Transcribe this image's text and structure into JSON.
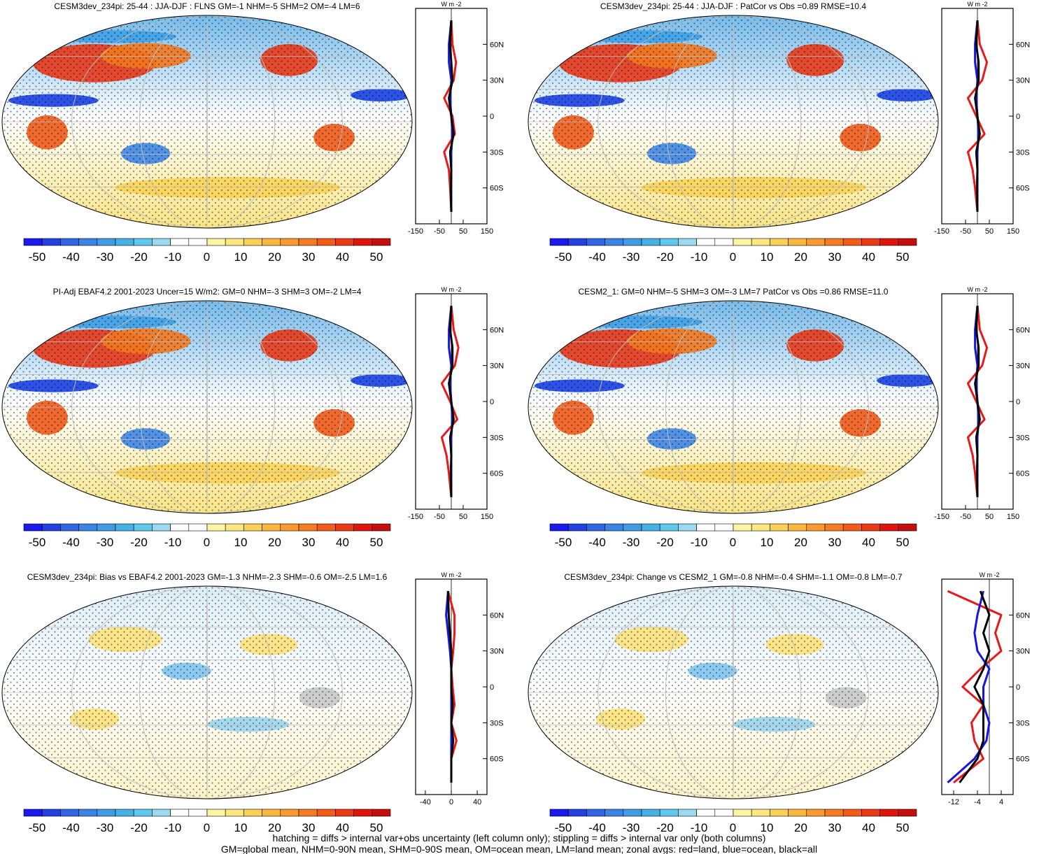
{
  "colors": {
    "land": "#e8191a",
    "ocean": "#1515e6",
    "all": "#000000",
    "grid": "#bdbdbd",
    "missing": "#c9c9c9",
    "colorbar": [
      "#1a1aef",
      "#2340e0",
      "#2e66e3",
      "#3a84e6",
      "#3e9be4",
      "#42b2e3",
      "#5fc8ec",
      "#9ad9f0",
      "#ffffff",
      "#ffffff",
      "#fff3a6",
      "#fee77e",
      "#fdd053",
      "#fdb73d",
      "#fd9a2d",
      "#f97b21",
      "#f45a18",
      "#ec3a13",
      "#e2140e",
      "#c70d0d"
    ]
  },
  "colorbar_ticks": [
    "-50",
    "-40",
    "-30",
    "-20",
    "-10",
    "0",
    "10",
    "20",
    "30",
    "40",
    "50"
  ],
  "lat_ticks": [
    "60N",
    "30N",
    "0",
    "30S",
    "60S"
  ],
  "unit_label": "W m",
  "unit_sup": "-2",
  "panels": [
    {
      "title": "CESM3dev_234pi: 25-44 : JJA-DJF : FLNS GM=-1 NHM=-5 SHM=2 OM=-4 LM=6",
      "xticks": [
        "-150",
        "-50",
        "50",
        "150"
      ],
      "kind": "mean"
    },
    {
      "title": "CESM3dev_234pi: 25-44 : JJA-DJF : PatCor vs Obs =0.89 RMSE=10.4",
      "xticks": [
        "-150",
        "-50",
        "50",
        "150"
      ],
      "kind": "mean"
    },
    {
      "title": "PI-Adj EBAF4.2 2001-2023 Uncer=15 W/m2: GM=0 NHM=-3 SHM=3 OM=-2 LM=4",
      "xticks": [
        "-150",
        "-50",
        "50",
        "150"
      ],
      "kind": "mean"
    },
    {
      "title": "CESM2_1: GM=0 NHM=-5 SHM=3 OM=-3 LM=7 PatCor vs Obs =0.86 RMSE=11.0",
      "xticks": [
        "-150",
        "-50",
        "50",
        "150"
      ],
      "kind": "mean"
    },
    {
      "title": "CESM3dev_234pi: Bias vs EBAF4.2 2001-2023 GM=-1.3 NHM=-2.3 SHM=-0.6 OM=-2.5 LM=1.6",
      "xticks": [
        "-40",
        "0",
        "40"
      ],
      "kind": "diff"
    },
    {
      "title": "CESM3dev_234pi: Change vs CESM2_1 GM=-0.8 NHM=-0.4 SHM=-1.1 OM=-0.8 LM=-0.7",
      "xticks": [
        "-12",
        "-4",
        "4"
      ],
      "kind": "change"
    }
  ],
  "footer": [
    "hatching = diffs > internal var+obs uncertainty (left column only); stippling = diffs > internal var only (both columns)",
    "GM=global mean, NHM=0-90N mean, SHM=0-90S mean, OM=ocean mean, LM=land mean; zonal avgs: red=land, blue=ocean, black=all"
  ],
  "chart_data": [
    {
      "type": "heatmap",
      "title": "CESM3dev_234pi: 25-44 : JJA-DJF : FLNS GM=-1 NHM=-5 SHM=2 OM=-4 LM=6",
      "colorbar_range": [
        -50,
        50
      ],
      "zonal_profile": {
        "xlim": [
          -150,
          150
        ],
        "lat": [
          80,
          60,
          45,
          30,
          15,
          0,
          -15,
          -30,
          -45,
          -60,
          -80
        ],
        "land": [
          0,
          5,
          20,
          10,
          -30,
          5,
          15,
          -30,
          -10,
          -5,
          0
        ],
        "ocean": [
          0,
          -10,
          -10,
          0,
          -5,
          0,
          5,
          0,
          0,
          0,
          0
        ],
        "all": [
          0,
          -5,
          0,
          5,
          -10,
          0,
          10,
          -5,
          0,
          -2,
          0
        ]
      }
    },
    {
      "type": "heatmap",
      "title": "CESM3dev_234pi: 25-44 : JJA-DJF : PatCor vs Obs =0.89 RMSE=10.4",
      "colorbar_range": [
        -50,
        50
      ],
      "zonal_profile": {
        "xlim": [
          -150,
          150
        ],
        "lat": [
          80,
          60,
          45,
          30,
          15,
          0,
          -15,
          -30,
          -45,
          -60,
          -80
        ],
        "land": [
          0,
          10,
          40,
          20,
          -40,
          -5,
          30,
          -40,
          -20,
          -10,
          0
        ],
        "ocean": [
          0,
          -10,
          -10,
          0,
          -5,
          0,
          5,
          0,
          0,
          0,
          0
        ],
        "all": [
          0,
          -5,
          5,
          5,
          -10,
          0,
          10,
          -5,
          0,
          -2,
          0
        ]
      }
    },
    {
      "type": "heatmap",
      "title": "PI-Adj EBAF4.2 2001-2023 Uncer=15 W/m2: GM=0 NHM=-3 SHM=3 OM=-2 LM=4",
      "colorbar_range": [
        -50,
        50
      ],
      "zonal_profile": {
        "xlim": [
          -150,
          150
        ],
        "lat": [
          80,
          60,
          45,
          30,
          15,
          0,
          -15,
          -30,
          -45,
          -60,
          -80
        ],
        "land": [
          0,
          10,
          30,
          15,
          -40,
          -5,
          25,
          -40,
          -20,
          -10,
          0
        ],
        "ocean": [
          0,
          -10,
          -10,
          0,
          -5,
          0,
          5,
          0,
          0,
          0,
          0
        ],
        "all": [
          0,
          -5,
          5,
          5,
          -10,
          0,
          10,
          -5,
          0,
          -2,
          0
        ]
      }
    },
    {
      "type": "heatmap",
      "title": "CESM2_1: GM=0 NHM=-5 SHM=3 OM=-3 LM=7 PatCor vs Obs =0.86 RMSE=11.0",
      "colorbar_range": [
        -50,
        50
      ],
      "zonal_profile": {
        "xlim": [
          -150,
          150
        ],
        "lat": [
          80,
          60,
          45,
          30,
          15,
          0,
          -15,
          -30,
          -45,
          -60,
          -80
        ],
        "land": [
          0,
          10,
          40,
          20,
          -40,
          -5,
          30,
          -40,
          -20,
          -10,
          0
        ],
        "ocean": [
          0,
          -10,
          -10,
          0,
          -5,
          0,
          5,
          0,
          0,
          0,
          0
        ],
        "all": [
          0,
          -5,
          5,
          5,
          -10,
          0,
          10,
          -5,
          0,
          -2,
          0
        ]
      }
    },
    {
      "type": "heatmap",
      "title": "CESM3dev_234pi: Bias vs EBAF4.2 2001-2023 GM=-1.3 NHM=-2.3 SHM=-0.6 OM=-2.5 LM=1.6",
      "colorbar_range": [
        -50,
        50
      ],
      "zonal_profile": {
        "xlim": [
          -55,
          55
        ],
        "lat": [
          80,
          60,
          45,
          30,
          15,
          0,
          -15,
          -30,
          -45,
          -60,
          -80
        ],
        "land": [
          -5,
          5,
          5,
          3,
          0,
          2,
          5,
          0,
          8,
          0,
          0
        ],
        "ocean": [
          -5,
          -8,
          -5,
          -2,
          0,
          0,
          0,
          0,
          0,
          0,
          0
        ],
        "all": [
          -5,
          -4,
          -2,
          0,
          0,
          0,
          2,
          0,
          3,
          0,
          0
        ]
      }
    },
    {
      "type": "heatmap",
      "title": "CESM3dev_234pi: Change vs CESM2_1 GM=-0.8 NHM=-0.4 SHM=-1.1 OM=-0.8 LM=-0.7",
      "colorbar_range": [
        -50,
        50
      ],
      "zonal_profile": {
        "xlim": [
          -16,
          8
        ],
        "lat": [
          80,
          60,
          45,
          30,
          15,
          0,
          -15,
          -30,
          -45,
          -60,
          -80
        ],
        "land": [
          -14,
          4,
          2,
          4,
          -3,
          -9,
          -2,
          -6,
          -5,
          -2,
          -12
        ],
        "ocean": [
          -2,
          -4,
          -5,
          -4,
          0,
          -2,
          -2,
          0,
          -1,
          -5,
          -14
        ],
        "all": [
          -3,
          0,
          -2,
          0,
          -2,
          -5,
          -2,
          -2,
          -2,
          -4,
          -10
        ]
      }
    }
  ]
}
